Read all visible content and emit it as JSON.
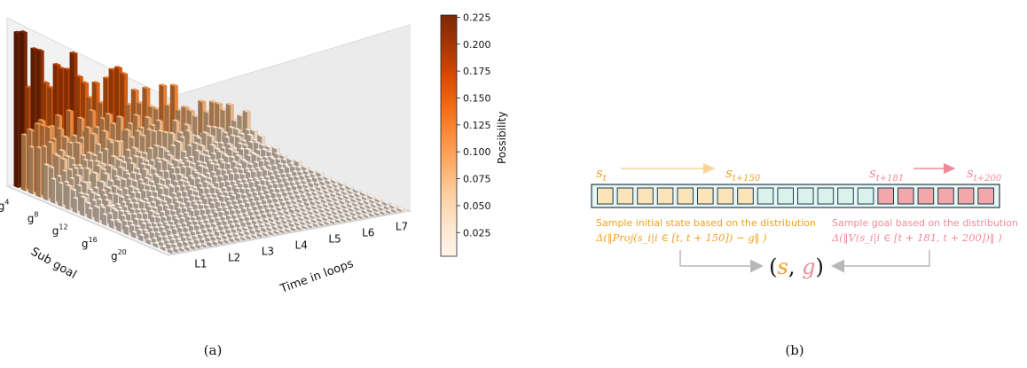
{
  "chart_data": {
    "type": "bar3d",
    "panel_label": "(a)",
    "xlabel": "Time in loops",
    "ylabel": "Sub goal",
    "x_ticks": [
      "L1",
      "L2",
      "L3",
      "L4",
      "L5",
      "L6",
      "L7"
    ],
    "y_ticks": [
      {
        "base": "g",
        "sup": "4"
      },
      {
        "base": "g",
        "sup": "8"
      },
      {
        "base": "g",
        "sup": "12"
      },
      {
        "base": "g",
        "sup": "16"
      },
      {
        "base": "g",
        "sup": "20"
      }
    ],
    "colorbar": {
      "label": "Possibility",
      "ticks": [
        "0.025",
        "0.050",
        "0.075",
        "0.100",
        "0.125",
        "0.150",
        "0.175",
        "0.200",
        "0.225"
      ],
      "tick_values": [
        0.025,
        0.05,
        0.075,
        0.1,
        0.125,
        0.15,
        0.175,
        0.2,
        0.225
      ],
      "range": [
        0.003,
        0.227
      ],
      "colormap": "Oranges",
      "colors": [
        "#fff5eb",
        "#fee6ce",
        "#fdd0a2",
        "#fdae6b",
        "#fd8d3c",
        "#f16913",
        "#d94801",
        "#a63603",
        "#7f2704"
      ]
    },
    "row_profile": {
      "description_values_by_subgoal_row_front_to_back": [
        0.005,
        0.006,
        0.006,
        0.007,
        0.008,
        0.009,
        0.01,
        0.012,
        0.014,
        0.016,
        0.018,
        0.02,
        0.023,
        0.027,
        0.032,
        0.038,
        0.045,
        0.055,
        0.07,
        0.09,
        0.11,
        0.2
      ]
    }
  },
  "diagram": {
    "panel_label": "(b)",
    "state_start": "s",
    "state_start_sub": "t",
    "state_start_end": "s",
    "state_start_end_sub": "t+150",
    "goal_start": "s",
    "goal_start_sub": "t+181",
    "goal_end": "s",
    "goal_end_sub": "t+200",
    "cells": [
      "init",
      "init",
      "init",
      "init",
      "init",
      "init",
      "init",
      "init",
      "mid",
      "mid",
      "mid",
      "mid",
      "mid",
      "mid",
      "goal",
      "goal",
      "goal",
      "goal",
      "goal",
      "goal"
    ],
    "cell_colors": {
      "init": "#fde3b8",
      "mid": "#d9f2ec",
      "goal": "#f2a8a8",
      "border": "#1f3b4d"
    },
    "left_caption": "Sample initial state based on the distribution",
    "left_formula": "Δ(‖Proj(s_i|i ∈ [t, t + 150]) − g‖ )",
    "right_caption": "Sample goal based on the distribution",
    "right_formula": "Δ(‖V(s_i|i ∈ [t + 181, t + 200])‖ )",
    "pair_open": "(",
    "pair_s": "s",
    "pair_comma": ", ",
    "pair_g": "g",
    "pair_close": ")",
    "colors": {
      "orange": "#f0a020",
      "pink": "#f08a9a",
      "arrow_init": "#f8d49a",
      "arrow_goal": "#f08a9a",
      "grey": "#b8b8b8"
    }
  }
}
